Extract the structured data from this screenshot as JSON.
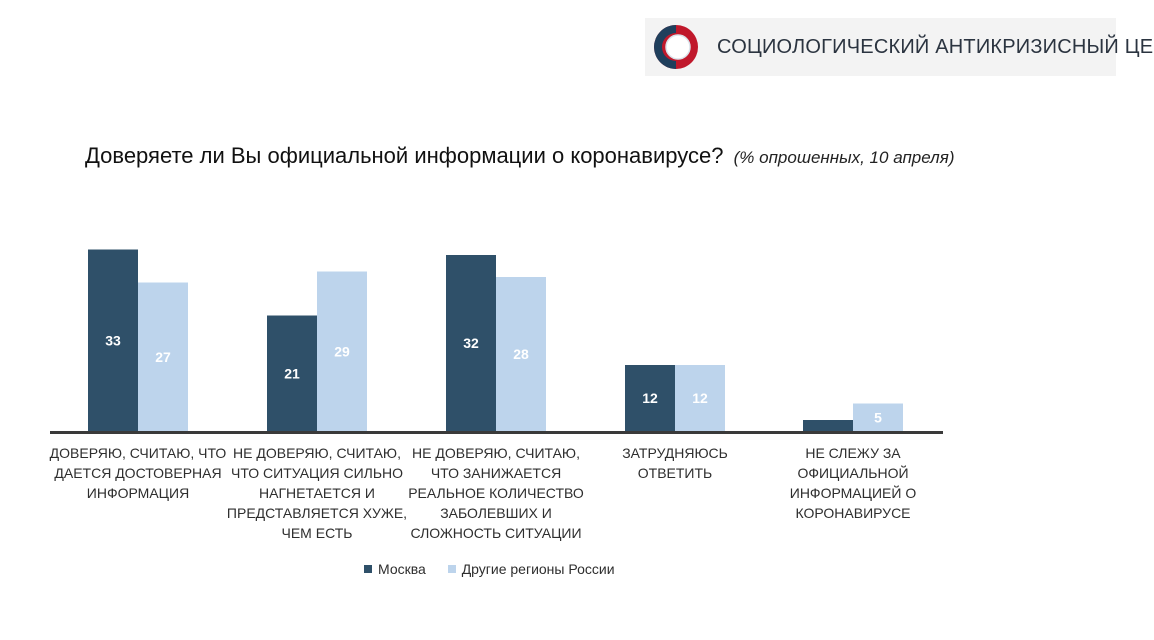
{
  "logo": {
    "text": "СОЦИОЛОГИЧЕСКИЙ АНТИКРИЗИСНЫЙ ЦЕНТР"
  },
  "chart_data": {
    "type": "bar",
    "title": "Доверяете ли Вы официальной информации о коронавирусе?",
    "subtitle": "(% опрошенных, 10 апреля)",
    "categories": [
      "ДОВЕРЯЮ, СЧИТАЮ, ЧТО ДАЕТСЯ ДОСТОВЕРНАЯ ИНФОРМАЦИЯ",
      "НЕ ДОВЕРЯЮ, СЧИТАЮ, ЧТО СИТУАЦИЯ СИЛЬНО НАГНЕТАЕТСЯ И ПРЕДСТАВЛЯЕТСЯ ХУЖЕ, ЧЕМ ЕСТЬ",
      "НЕ ДОВЕРЯЮ, СЧИТАЮ, ЧТО ЗАНИЖАЕТСЯ РЕАЛЬНОЕ КОЛИЧЕСТВО ЗАБОЛЕВШИХ И СЛОЖНОСТЬ СИТУАЦИИ",
      "ЗАТРУДНЯЮСЬ ОТВЕТИТЬ",
      "НЕ СЛЕЖУ ЗА ОФИЦИАЛЬНОЙ ИНФОРМАЦИЕЙ О КОРОНАВИРУСЕ"
    ],
    "series": [
      {
        "name": "Москва",
        "color": "#2f5069",
        "label_color": "#ffffff",
        "values": [
          33,
          21,
          32,
          12,
          2
        ],
        "labels": [
          "33",
          "21",
          "32",
          "12",
          ""
        ]
      },
      {
        "name": "Другие регионы России",
        "color": "#bdd4ec",
        "label_color": "#ffffff",
        "values": [
          27,
          29,
          28,
          12,
          5
        ],
        "labels": [
          "27",
          "29",
          "28",
          "12",
          "5"
        ]
      }
    ],
    "ylim": [
      0,
      34
    ],
    "legend_position": "bottom",
    "grid": false
  }
}
